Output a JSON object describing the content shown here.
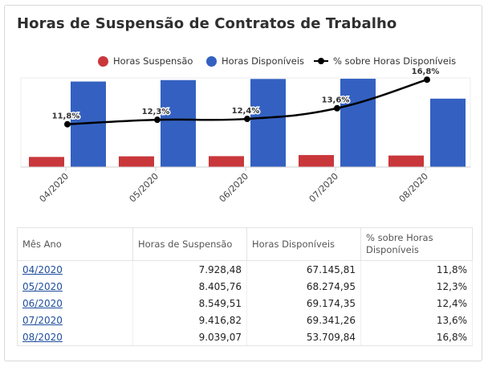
{
  "title": "Horas de Suspensão de Contratos de Trabalho",
  "legend": {
    "suspensao": "Horas Suspensão",
    "disponiveis": "Horas Disponíveis",
    "percent": "% sobre Horas Disponíveis"
  },
  "colors": {
    "suspensao": "#c9373b",
    "disponiveis": "#3461c1",
    "line": "#000000"
  },
  "chart_data": {
    "type": "bar",
    "title": "Horas de Suspensão de Contratos de Trabalho",
    "categories": [
      "04/2020",
      "05/2020",
      "06/2020",
      "07/2020",
      "08/2020"
    ],
    "series": [
      {
        "name": "Horas Suspensão",
        "type": "bar",
        "values": [
          7928.48,
          8405.76,
          8549.51,
          9416.82,
          9039.07
        ]
      },
      {
        "name": "Horas Disponíveis",
        "type": "bar",
        "values": [
          67145.81,
          68274.95,
          69174.35,
          69341.26,
          53709.84
        ]
      },
      {
        "name": "% sobre Horas Disponíveis",
        "type": "line",
        "values": [
          11.8,
          12.3,
          12.4,
          13.6,
          16.8
        ],
        "labels": [
          "11,8%",
          "12,3%",
          "12,4%",
          "13,6%",
          "16,8%"
        ]
      }
    ],
    "ylim": [
      0,
      70000
    ],
    "ylim_percent": [
      7,
      17
    ],
    "legend_position": "top-right"
  },
  "table": {
    "headers": [
      "Mês Ano",
      "Horas de Suspensão",
      "Horas Disponíveis",
      "% sobre Horas Disponíveis"
    ],
    "rows": [
      [
        "04/2020",
        "7.928,48",
        "67.145,81",
        "11,8%"
      ],
      [
        "05/2020",
        "8.405,76",
        "68.274,95",
        "12,3%"
      ],
      [
        "06/2020",
        "8.549,51",
        "69.174,35",
        "12,4%"
      ],
      [
        "07/2020",
        "9.416,82",
        "69.341,26",
        "13,6%"
      ],
      [
        "08/2020",
        "9.039,07",
        "53.709,84",
        "16,8%"
      ]
    ]
  }
}
